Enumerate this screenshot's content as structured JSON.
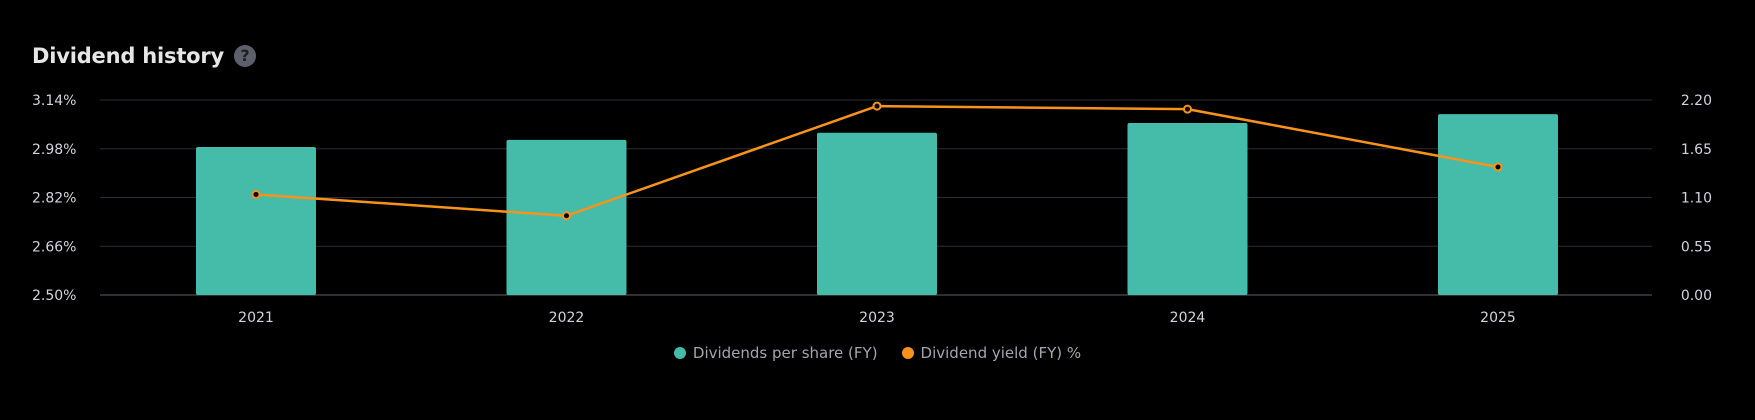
{
  "header": {
    "title": "Dividend history",
    "help_icon": "question-mark-circle-icon",
    "help_glyph": "?"
  },
  "colors": {
    "background": "#000000",
    "bars": "#45bba9",
    "line": "#f7931a",
    "grid": "#2a2d35",
    "axis_text": "#d1d4dc",
    "legend_text": "#a3a6af"
  },
  "chart_data": {
    "type": "bar",
    "categories": [
      "2021",
      "2022",
      "2023",
      "2024",
      "2025"
    ],
    "left_axis": {
      "ticks": [
        "3.14%",
        "2.98%",
        "2.82%",
        "2.66%",
        "2.50%"
      ],
      "ylim": [
        2.5,
        3.14
      ]
    },
    "right_axis": {
      "ticks": [
        "2.20",
        "1.65",
        "1.10",
        "0.55",
        "0.00"
      ],
      "ylim": [
        0.0,
        2.2
      ]
    },
    "series": [
      {
        "name": "Dividends per share (FY)",
        "kind": "bar",
        "axis": "right",
        "values": [
          1.67,
          1.75,
          1.83,
          1.94,
          2.04
        ]
      },
      {
        "name": "Dividend yield (FY) %",
        "kind": "line",
        "axis": "left",
        "values": [
          2.83,
          2.76,
          3.12,
          3.11,
          2.92
        ]
      }
    ],
    "grid": true,
    "legend_position": "bottom-center"
  }
}
